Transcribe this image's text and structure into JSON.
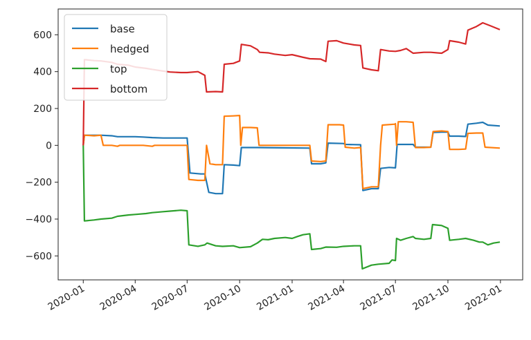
{
  "chart_data": {
    "type": "line",
    "title": "",
    "xlabel": "",
    "ylabel": "",
    "xlim": [
      "2019-11-18",
      "2022-02-09"
    ],
    "ylim": [
      -730,
      740
    ],
    "grid": false,
    "legend": "top-left",
    "x_ticks": [
      "2020-01",
      "2020-04",
      "2020-07",
      "2020-10",
      "2021-01",
      "2021-04",
      "2021-07",
      "2021-10",
      "2022-01"
    ],
    "y_ticks": [
      -600,
      -400,
      -200,
      0,
      200,
      400,
      600
    ],
    "y_tick_labels": [
      "−600",
      "−400",
      "−200",
      "0",
      "200",
      "400",
      "600"
    ],
    "series": [
      {
        "name": "base",
        "color": "#1f77b4",
        "points": [
          [
            "2020-01-01",
            0
          ],
          [
            "2020-01-03",
            55
          ],
          [
            "2020-01-20",
            55
          ],
          [
            "2020-02-01",
            55
          ],
          [
            "2020-02-20",
            52
          ],
          [
            "2020-03-01",
            47
          ],
          [
            "2020-03-20",
            47
          ],
          [
            "2020-04-01",
            47
          ],
          [
            "2020-04-15",
            45
          ],
          [
            "2020-05-01",
            42
          ],
          [
            "2020-05-20",
            40
          ],
          [
            "2020-06-01",
            40
          ],
          [
            "2020-06-20",
            40
          ],
          [
            "2020-07-01",
            40
          ],
          [
            "2020-07-06",
            -150
          ],
          [
            "2020-07-25",
            -155
          ],
          [
            "2020-08-01",
            -155
          ],
          [
            "2020-08-08",
            -255
          ],
          [
            "2020-08-20",
            -262
          ],
          [
            "2020-09-01",
            -262
          ],
          [
            "2020-09-04",
            -105
          ],
          [
            "2020-09-20",
            -107
          ],
          [
            "2020-10-01",
            -110
          ],
          [
            "2020-10-04",
            -12
          ],
          [
            "2020-11-01",
            -12
          ],
          [
            "2021-02-01",
            -15
          ],
          [
            "2021-02-04",
            -100
          ],
          [
            "2021-02-20",
            -100
          ],
          [
            "2021-03-01",
            -95
          ],
          [
            "2021-03-05",
            12
          ],
          [
            "2021-04-01",
            10
          ],
          [
            "2021-04-05",
            5
          ],
          [
            "2021-05-01",
            3
          ],
          [
            "2021-05-05",
            -245
          ],
          [
            "2021-05-20",
            -235
          ],
          [
            "2021-06-01",
            -235
          ],
          [
            "2021-06-05",
            -125
          ],
          [
            "2021-06-20",
            -120
          ],
          [
            "2021-07-01",
            -122
          ],
          [
            "2021-07-04",
            5
          ],
          [
            "2021-07-20",
            5
          ],
          [
            "2021-08-01",
            5
          ],
          [
            "2021-08-05",
            -10
          ],
          [
            "2021-09-01",
            -10
          ],
          [
            "2021-09-05",
            70
          ],
          [
            "2021-09-20",
            72
          ],
          [
            "2021-10-01",
            72
          ],
          [
            "2021-10-04",
            50
          ],
          [
            "2021-10-20",
            50
          ],
          [
            "2021-11-01",
            48
          ],
          [
            "2021-11-05",
            115
          ],
          [
            "2021-11-20",
            120
          ],
          [
            "2021-12-01",
            125
          ],
          [
            "2021-12-10",
            110
          ],
          [
            "2021-12-31",
            105
          ]
        ]
      },
      {
        "name": "hedged",
        "color": "#ff7f0e",
        "points": [
          [
            "2020-01-01",
            0
          ],
          [
            "2020-01-03",
            55
          ],
          [
            "2020-01-20",
            52
          ],
          [
            "2020-02-01",
            55
          ],
          [
            "2020-02-05",
            0
          ],
          [
            "2020-02-20",
            0
          ],
          [
            "2020-03-01",
            -5
          ],
          [
            "2020-03-05",
            0
          ],
          [
            "2020-04-01",
            0
          ],
          [
            "2020-04-15",
            0
          ],
          [
            "2020-05-01",
            -5
          ],
          [
            "2020-05-05",
            0
          ],
          [
            "2020-06-01",
            0
          ],
          [
            "2020-07-01",
            0
          ],
          [
            "2020-07-04",
            -185
          ],
          [
            "2020-07-20",
            -190
          ],
          [
            "2020-08-01",
            -190
          ],
          [
            "2020-08-04",
            0
          ],
          [
            "2020-08-10",
            -100
          ],
          [
            "2020-08-20",
            -105
          ],
          [
            "2020-09-01",
            -105
          ],
          [
            "2020-09-04",
            158
          ],
          [
            "2020-09-20",
            160
          ],
          [
            "2020-10-01",
            162
          ],
          [
            "2020-10-03",
            0
          ],
          [
            "2020-10-06",
            97
          ],
          [
            "2020-10-20",
            97
          ],
          [
            "2020-11-01",
            95
          ],
          [
            "2020-11-04",
            0
          ],
          [
            "2021-02-01",
            0
          ],
          [
            "2021-02-04",
            -85
          ],
          [
            "2021-02-20",
            -88
          ],
          [
            "2021-03-01",
            -85
          ],
          [
            "2021-03-05",
            112
          ],
          [
            "2021-03-25",
            112
          ],
          [
            "2021-04-01",
            110
          ],
          [
            "2021-04-04",
            -10
          ],
          [
            "2021-04-20",
            -15
          ],
          [
            "2021-05-01",
            -12
          ],
          [
            "2021-05-05",
            -235
          ],
          [
            "2021-05-20",
            -225
          ],
          [
            "2021-06-01",
            -225
          ],
          [
            "2021-06-05",
            0
          ],
          [
            "2021-06-08",
            110
          ],
          [
            "2021-06-30",
            115
          ],
          [
            "2021-07-01",
            118
          ],
          [
            "2021-07-03",
            0
          ],
          [
            "2021-07-06",
            128
          ],
          [
            "2021-07-20",
            128
          ],
          [
            "2021-08-01",
            125
          ],
          [
            "2021-08-05",
            -12
          ],
          [
            "2021-08-20",
            -12
          ],
          [
            "2021-09-01",
            -10
          ],
          [
            "2021-09-05",
            75
          ],
          [
            "2021-09-20",
            78
          ],
          [
            "2021-10-01",
            75
          ],
          [
            "2021-10-04",
            -22
          ],
          [
            "2021-10-20",
            -22
          ],
          [
            "2021-11-01",
            -20
          ],
          [
            "2021-11-05",
            65
          ],
          [
            "2021-11-20",
            67
          ],
          [
            "2021-12-01",
            67
          ],
          [
            "2021-12-05",
            -10
          ],
          [
            "2021-12-31",
            -15
          ]
        ]
      },
      {
        "name": "top",
        "color": "#2ca02c",
        "points": [
          [
            "2020-01-01",
            0
          ],
          [
            "2020-01-03",
            -410
          ],
          [
            "2020-01-20",
            -405
          ],
          [
            "2020-02-01",
            -400
          ],
          [
            "2020-02-20",
            -395
          ],
          [
            "2020-03-01",
            -385
          ],
          [
            "2020-03-20",
            -378
          ],
          [
            "2020-04-01",
            -375
          ],
          [
            "2020-04-20",
            -370
          ],
          [
            "2020-05-01",
            -365
          ],
          [
            "2020-05-20",
            -360
          ],
          [
            "2020-06-01",
            -357
          ],
          [
            "2020-06-20",
            -352
          ],
          [
            "2020-07-01",
            -355
          ],
          [
            "2020-07-04",
            -540
          ],
          [
            "2020-07-20",
            -548
          ],
          [
            "2020-08-01",
            -540
          ],
          [
            "2020-08-05",
            -530
          ],
          [
            "2020-08-20",
            -545
          ],
          [
            "2020-09-01",
            -548
          ],
          [
            "2020-09-20",
            -545
          ],
          [
            "2020-10-01",
            -555
          ],
          [
            "2020-10-20",
            -550
          ],
          [
            "2020-11-01",
            -530
          ],
          [
            "2020-11-10",
            -510
          ],
          [
            "2020-11-20",
            -512
          ],
          [
            "2020-12-01",
            -505
          ],
          [
            "2020-12-20",
            -500
          ],
          [
            "2021-01-01",
            -505
          ],
          [
            "2021-01-10",
            -495
          ],
          [
            "2021-01-20",
            -485
          ],
          [
            "2021-02-01",
            -480
          ],
          [
            "2021-02-04",
            -565
          ],
          [
            "2021-02-20",
            -560
          ],
          [
            "2021-03-01",
            -552
          ],
          [
            "2021-03-20",
            -553
          ],
          [
            "2021-04-01",
            -548
          ],
          [
            "2021-04-20",
            -545
          ],
          [
            "2021-05-01",
            -545
          ],
          [
            "2021-05-04",
            -670
          ],
          [
            "2021-05-20",
            -650
          ],
          [
            "2021-06-01",
            -645
          ],
          [
            "2021-06-20",
            -640
          ],
          [
            "2021-06-25",
            -622
          ],
          [
            "2021-07-01",
            -625
          ],
          [
            "2021-07-03",
            -505
          ],
          [
            "2021-07-10",
            -515
          ],
          [
            "2021-07-20",
            -505
          ],
          [
            "2021-08-01",
            -495
          ],
          [
            "2021-08-05",
            -505
          ],
          [
            "2021-08-20",
            -510
          ],
          [
            "2021-09-01",
            -505
          ],
          [
            "2021-09-04",
            -430
          ],
          [
            "2021-09-20",
            -435
          ],
          [
            "2021-10-01",
            -450
          ],
          [
            "2021-10-04",
            -515
          ],
          [
            "2021-10-20",
            -510
          ],
          [
            "2021-11-01",
            -505
          ],
          [
            "2021-11-15",
            -515
          ],
          [
            "2021-11-25",
            -525
          ],
          [
            "2021-12-01",
            -525
          ],
          [
            "2021-12-10",
            -540
          ],
          [
            "2021-12-20",
            -530
          ],
          [
            "2021-12-31",
            -525
          ]
        ]
      },
      {
        "name": "bottom",
        "color": "#d62728",
        "points": [
          [
            "2020-01-01",
            0
          ],
          [
            "2020-01-03",
            465
          ],
          [
            "2020-01-20",
            460
          ],
          [
            "2020-02-01",
            458
          ],
          [
            "2020-02-20",
            450
          ],
          [
            "2020-03-01",
            440
          ],
          [
            "2020-03-20",
            435
          ],
          [
            "2020-04-01",
            425
          ],
          [
            "2020-04-20",
            418
          ],
          [
            "2020-05-01",
            412
          ],
          [
            "2020-05-20",
            403
          ],
          [
            "2020-06-01",
            398
          ],
          [
            "2020-06-20",
            395
          ],
          [
            "2020-07-01",
            395
          ],
          [
            "2020-07-20",
            400
          ],
          [
            "2020-08-01",
            380
          ],
          [
            "2020-08-04",
            290
          ],
          [
            "2020-08-20",
            292
          ],
          [
            "2020-09-01",
            290
          ],
          [
            "2020-09-04",
            440
          ],
          [
            "2020-09-20",
            445
          ],
          [
            "2020-10-01",
            458
          ],
          [
            "2020-10-04",
            548
          ],
          [
            "2020-10-20",
            540
          ],
          [
            "2020-11-01",
            520
          ],
          [
            "2020-11-05",
            505
          ],
          [
            "2020-11-20",
            502
          ],
          [
            "2020-12-01",
            495
          ],
          [
            "2020-12-20",
            488
          ],
          [
            "2021-01-01",
            492
          ],
          [
            "2021-01-20",
            478
          ],
          [
            "2021-02-01",
            470
          ],
          [
            "2021-02-20",
            468
          ],
          [
            "2021-03-01",
            455
          ],
          [
            "2021-03-05",
            565
          ],
          [
            "2021-03-20",
            568
          ],
          [
            "2021-04-01",
            555
          ],
          [
            "2021-04-20",
            545
          ],
          [
            "2021-05-01",
            542
          ],
          [
            "2021-05-05",
            420
          ],
          [
            "2021-05-20",
            410
          ],
          [
            "2021-06-01",
            405
          ],
          [
            "2021-06-05",
            520
          ],
          [
            "2021-06-20",
            512
          ],
          [
            "2021-07-01",
            510
          ],
          [
            "2021-07-10",
            515
          ],
          [
            "2021-07-20",
            525
          ],
          [
            "2021-08-01",
            500
          ],
          [
            "2021-08-20",
            505
          ],
          [
            "2021-09-01",
            505
          ],
          [
            "2021-09-20",
            500
          ],
          [
            "2021-10-01",
            520
          ],
          [
            "2021-10-04",
            568
          ],
          [
            "2021-10-20",
            560
          ],
          [
            "2021-11-01",
            550
          ],
          [
            "2021-11-05",
            625
          ],
          [
            "2021-11-20",
            645
          ],
          [
            "2021-12-01",
            665
          ],
          [
            "2021-12-15",
            648
          ],
          [
            "2021-12-31",
            628
          ]
        ]
      }
    ]
  }
}
